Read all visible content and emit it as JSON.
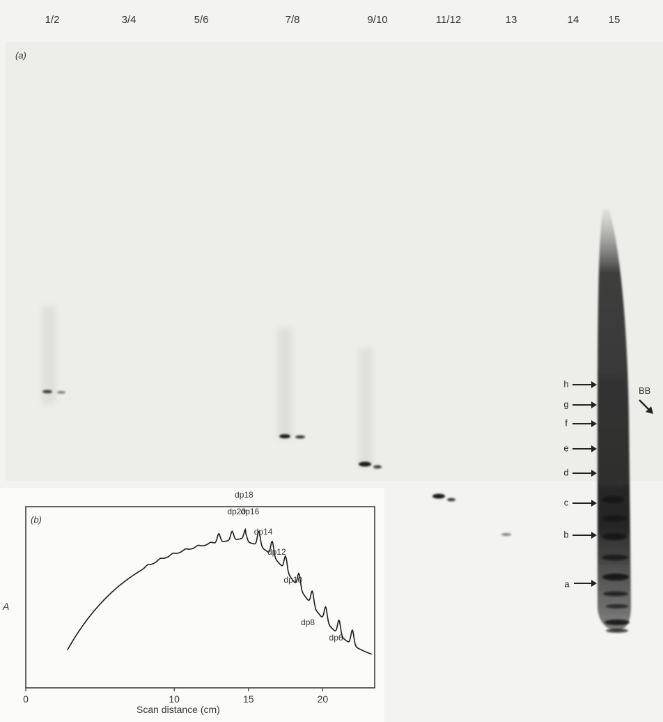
{
  "figure": {
    "panel_a_label": "(a)",
    "panel_b_label": "(b)",
    "lanes": [
      "1/2",
      "3/4",
      "5/6",
      "7/8",
      "9/10",
      "11/12",
      "13",
      "14",
      "15"
    ],
    "band_markers": [
      "h",
      "g",
      "f",
      "e",
      "d",
      "c",
      "b",
      "a"
    ],
    "bb_label": "BB"
  },
  "chart_data": {
    "type": "line",
    "xlabel": "Scan distance (cm)",
    "ylabel": "A",
    "xlim": [
      0,
      23.5
    ],
    "xticks": [
      0,
      10,
      15,
      20
    ],
    "peak_labels": [
      {
        "label": "dp20",
        "x": 14.2
      },
      {
        "label": "dp18",
        "x": 14.7
      },
      {
        "label": "dp16",
        "x": 15.1
      },
      {
        "label": "dp14",
        "x": 16.0
      },
      {
        "label": "dp12",
        "x": 16.9
      },
      {
        "label": "dp10",
        "x": 18.0
      },
      {
        "label": "dp8",
        "x": 19.0
      },
      {
        "label": "dp6",
        "x": 20.9
      }
    ]
  }
}
